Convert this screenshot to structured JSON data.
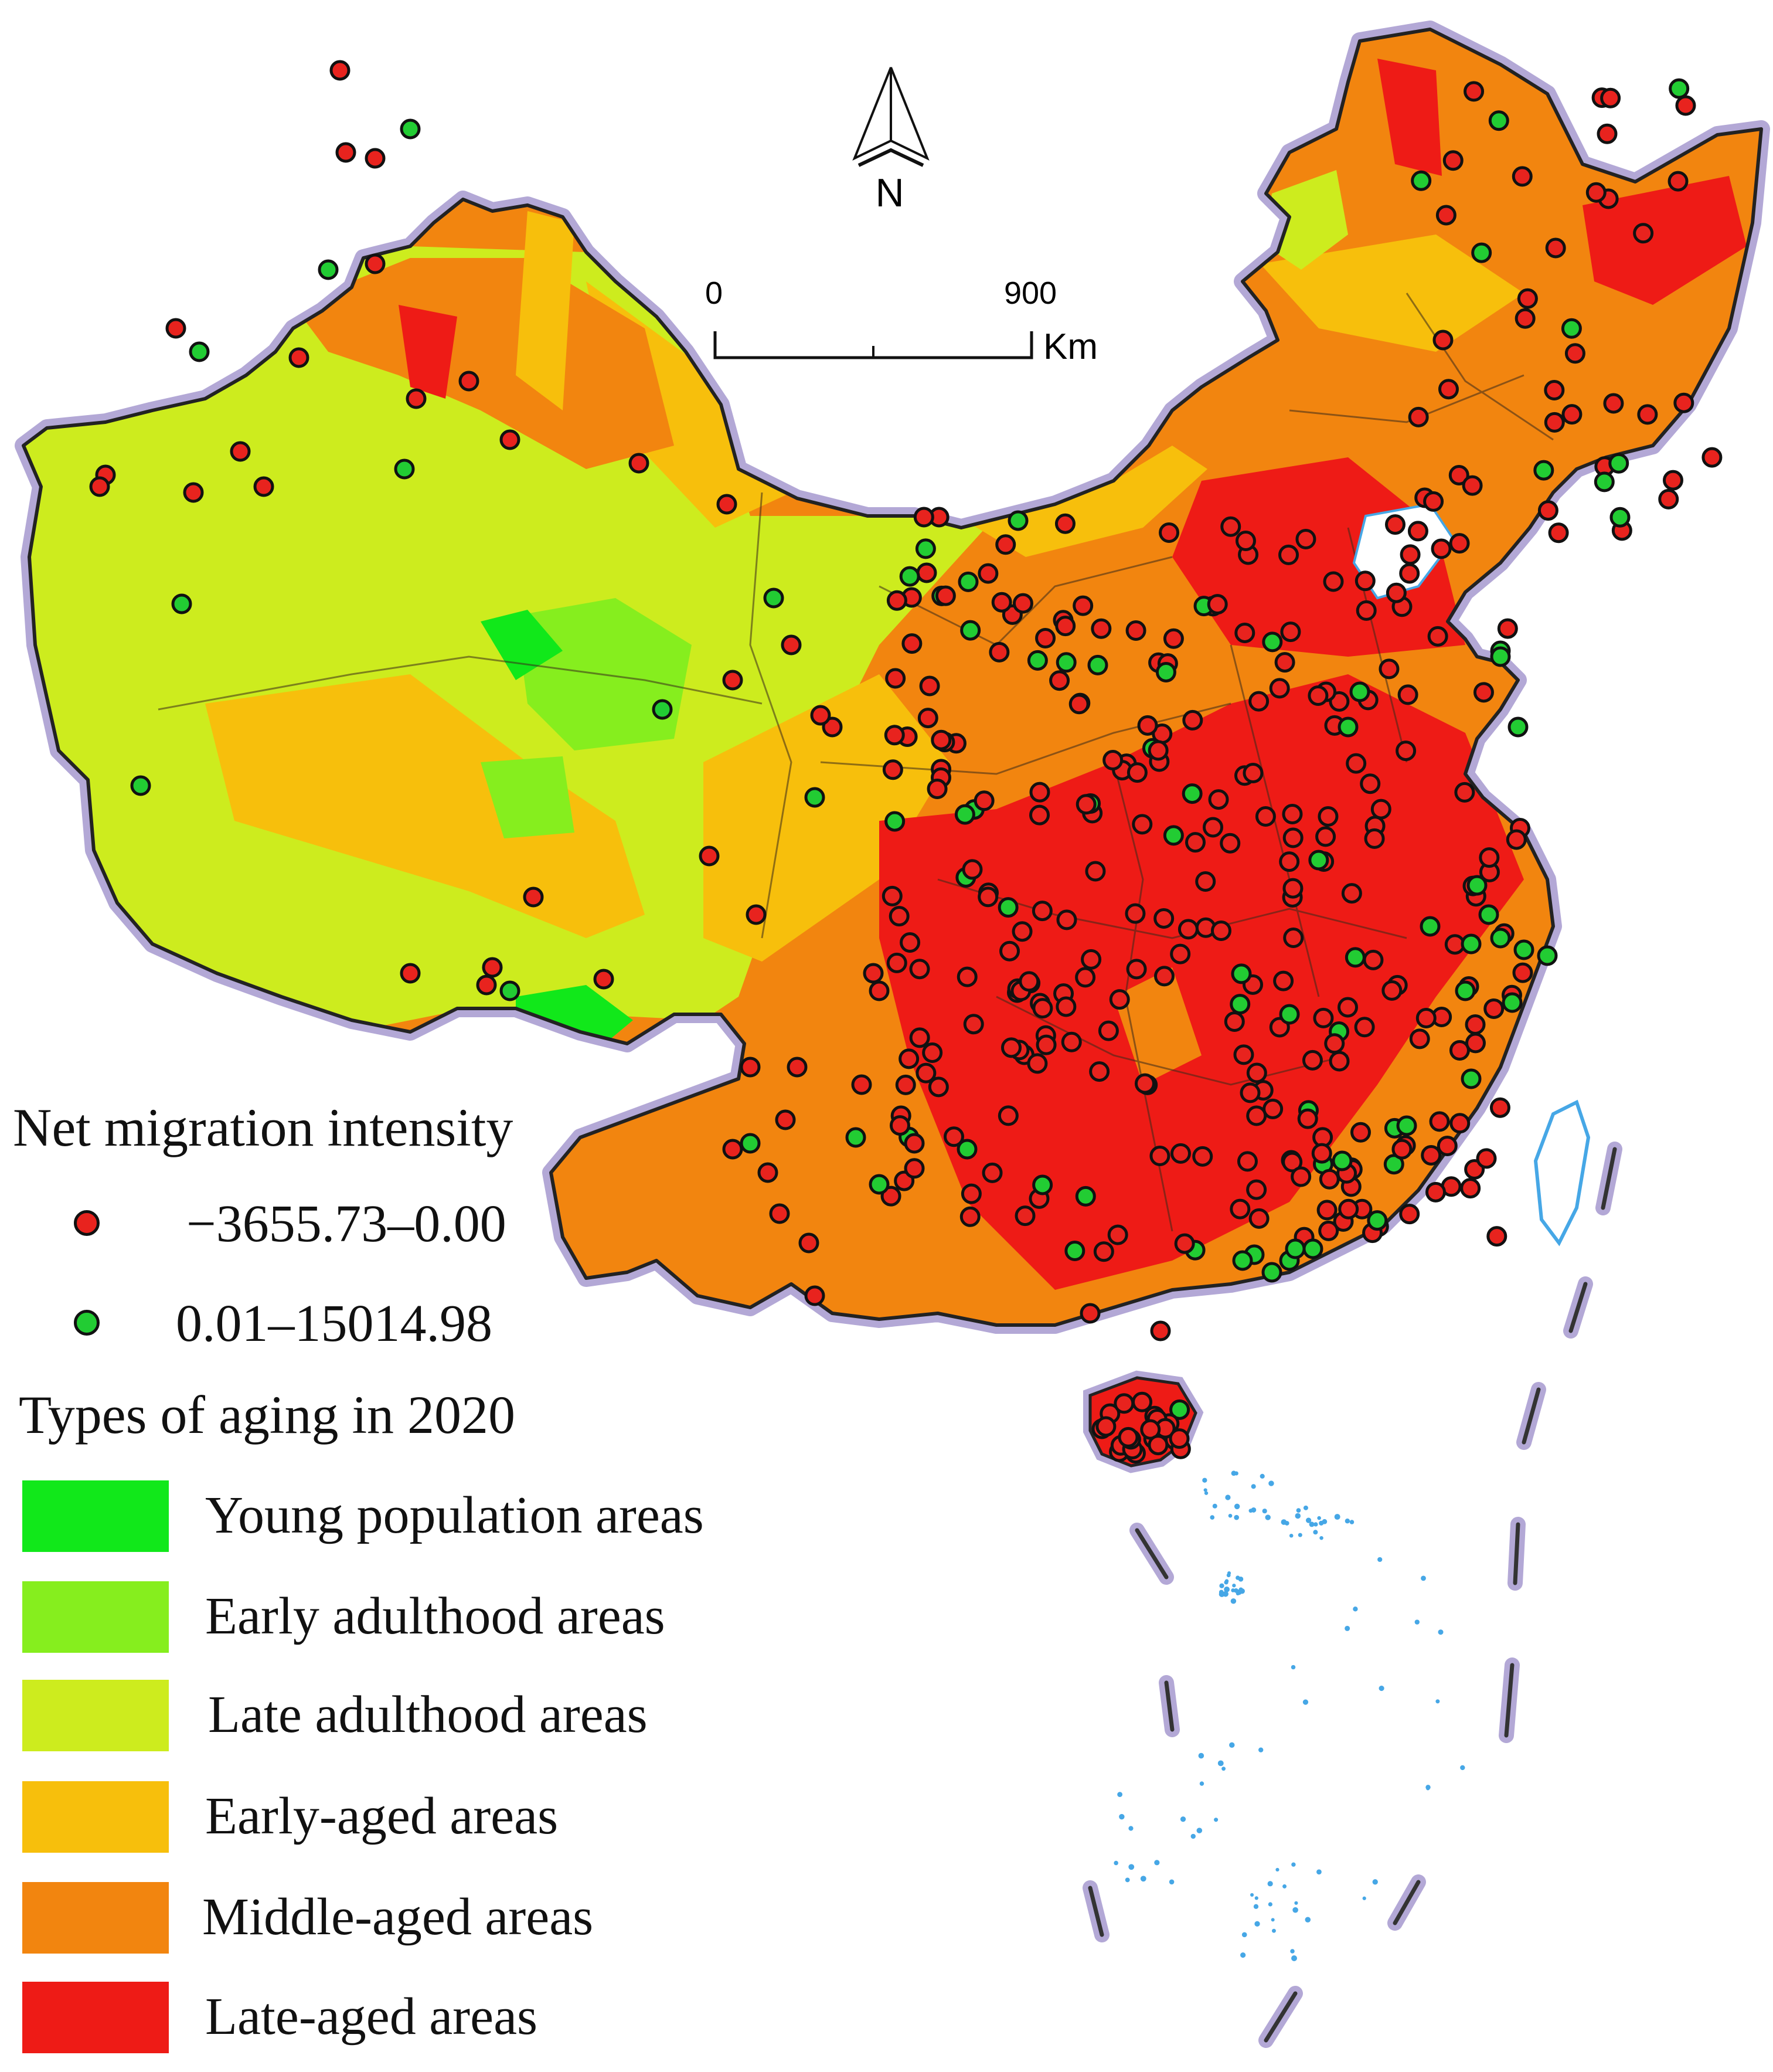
{
  "compass": {
    "label": "N"
  },
  "scale_bar": {
    "start": "0",
    "end": "900",
    "unit": "Km"
  },
  "migration_legend": {
    "title": "Net migration intensity",
    "items": [
      {
        "label": "−3655.73–0.00",
        "color": "#e8231e"
      },
      {
        "label": "0.01–15014.98",
        "color": "#22cc33"
      }
    ]
  },
  "aging_legend": {
    "title": "Types of aging in 2020",
    "items": [
      {
        "label": "Young population areas",
        "color": "#11e81a"
      },
      {
        "label": "Early adulthood areas",
        "color": "#86ee1e"
      },
      {
        "label": "Late adulthood areas",
        "color": "#cdec1e"
      },
      {
        "label": "Early-aged areas",
        "color": "#f7bf0c"
      },
      {
        "label": "Middle-aged areas",
        "color": "#f2850f"
      },
      {
        "label": "Late-aged areas",
        "color": "#ee1b16"
      }
    ]
  },
  "colors": {
    "boundary_halo": "#b3a8d6",
    "sea_islands": "#46a7e6",
    "dashed_line": "#333333"
  }
}
